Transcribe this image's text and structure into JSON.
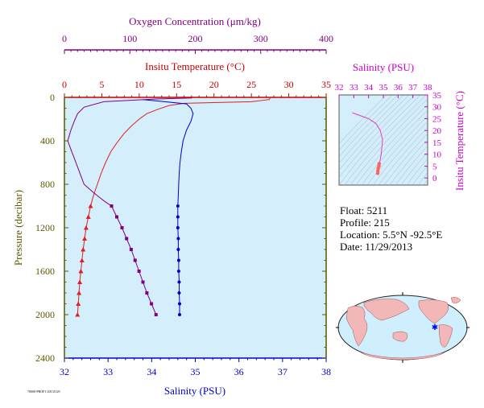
{
  "chart_data": [
    {
      "type": "line",
      "axes": {
        "pressure": {
          "label": "Pressure (decibar)",
          "range": [
            0,
            2400
          ],
          "ticks": [
            "0",
            "400",
            "800",
            "1200",
            "1600",
            "2000",
            "2400"
          ],
          "inverted": true,
          "color": "#5a5a00"
        },
        "salinity": {
          "label": "Salinity (PSU)",
          "range": [
            32,
            38
          ],
          "ticks": [
            "32",
            "33",
            "34",
            "35",
            "36",
            "37",
            "38"
          ],
          "color": "#0000cc"
        },
        "temperature": {
          "label": "Insitu Temperature (°C)",
          "range": [
            0,
            35
          ],
          "ticks": [
            "0",
            "5",
            "10",
            "15",
            "20",
            "25",
            "30",
            "35"
          ],
          "color": "#cc0000"
        },
        "oxygen": {
          "label": "Oxygen Concentration (μm/kg)",
          "range": [
            0,
            400
          ],
          "ticks": [
            "0",
            "100",
            "200",
            "300",
            "400"
          ],
          "color": "#800080"
        }
      },
      "series": [
        {
          "axis": "temperature",
          "color": "#e02020",
          "points": [
            [
              27.5,
              5
            ],
            [
              27.4,
              20
            ],
            [
              25,
              40
            ],
            [
              16,
              55
            ],
            [
              14,
              75
            ],
            [
              12.5,
              110
            ],
            [
              11,
              150
            ],
            [
              10,
              200
            ],
            [
              9,
              260
            ],
            [
              8,
              330
            ],
            [
              7,
              420
            ],
            [
              6.2,
              500
            ],
            [
              5.5,
              600
            ],
            [
              4.9,
              700
            ],
            [
              4.4,
              800
            ],
            [
              3.9,
              900
            ],
            [
              3.5,
              1000
            ],
            [
              3.2,
              1100
            ],
            [
              2.9,
              1200
            ],
            [
              2.7,
              1300
            ],
            [
              2.5,
              1400
            ],
            [
              2.35,
              1500
            ],
            [
              2.2,
              1600
            ],
            [
              2.05,
              1700
            ],
            [
              1.95,
              1800
            ],
            [
              1.85,
              1900
            ],
            [
              1.75,
              2000
            ]
          ],
          "markers_from": 1000,
          "marker": "triangle"
        },
        {
          "axis": "salinity",
          "color": "#0000cc",
          "points": [
            [
              33.8,
              20
            ],
            [
              34.3,
              40
            ],
            [
              34.8,
              60
            ],
            [
              34.9,
              100
            ],
            [
              34.95,
              150
            ],
            [
              34.9,
              220
            ],
            [
              34.8,
              300
            ],
            [
              34.72,
              400
            ],
            [
              34.68,
              500
            ],
            [
              34.65,
              600
            ],
            [
              34.63,
              700
            ],
            [
              34.62,
              800
            ],
            [
              34.61,
              900
            ],
            [
              34.6,
              1000
            ],
            [
              34.6,
              1100
            ],
            [
              34.6,
              1200
            ],
            [
              34.61,
              1300
            ],
            [
              34.61,
              1400
            ],
            [
              34.62,
              1500
            ],
            [
              34.62,
              1600
            ],
            [
              34.63,
              1700
            ],
            [
              34.63,
              1800
            ],
            [
              34.64,
              1900
            ],
            [
              34.64,
              2000
            ]
          ],
          "markers_from": 1000,
          "marker": "dot"
        },
        {
          "axis": "oxygen",
          "color": "#800080",
          "points": [
            [
              195,
              5
            ],
            [
              140,
              15
            ],
            [
              60,
              40
            ],
            [
              30,
              90
            ],
            [
              20,
              150
            ],
            [
              15,
              220
            ],
            [
              10,
              300
            ],
            [
              5,
              400
            ],
            [
              10,
              480
            ],
            [
              15,
              560
            ],
            [
              20,
              640
            ],
            [
              25,
              720
            ],
            [
              30,
              800
            ],
            [
              45,
              880
            ],
            [
              62,
              960
            ],
            [
              72,
              1000
            ],
            [
              80,
              1100
            ],
            [
              88,
              1200
            ],
            [
              95,
              1300
            ],
            [
              102,
              1400
            ],
            [
              108,
              1500
            ],
            [
              114,
              1600
            ],
            [
              120,
              1700
            ],
            [
              126,
              1800
            ],
            [
              133,
              1900
            ],
            [
              140,
              2000
            ]
          ],
          "markers_from": 1000,
          "marker": "square"
        }
      ]
    },
    {
      "type": "scatter",
      "title": "Salinity (PSU)",
      "xlabel": "Salinity (PSU)",
      "ylabel": "Insitu Temperature (°C)",
      "xlim": [
        32,
        38
      ],
      "ylim": [
        -3,
        35
      ],
      "xticks": [
        "32",
        "33",
        "34",
        "35",
        "36",
        "37",
        "38"
      ],
      "yticks": [
        "0",
        "5",
        "10",
        "15",
        "20",
        "25",
        "30",
        "35"
      ],
      "points": [
        [
          32.9,
          27.5
        ],
        [
          34.0,
          25
        ],
        [
          34.5,
          23
        ],
        [
          34.8,
          20
        ],
        [
          34.95,
          16
        ],
        [
          34.9,
          13
        ],
        [
          34.85,
          10
        ],
        [
          34.8,
          8
        ],
        [
          34.72,
          6
        ],
        [
          34.7,
          5
        ],
        [
          34.65,
          4
        ],
        [
          34.63,
          3
        ],
        [
          34.62,
          2
        ]
      ],
      "color": "#e040c0"
    }
  ],
  "float_info": {
    "float": "Float:  5211",
    "profile": "Profile:  215",
    "location": "Location:  5.5°N  -92.5°E",
    "date": "Date:  11/29/2013"
  },
  "footer_text": "70000-PROF1-20131129",
  "map": {
    "land_color": "#f2b8b8",
    "ocean_color": "#cfefff",
    "marker_color": "#0000ff"
  }
}
